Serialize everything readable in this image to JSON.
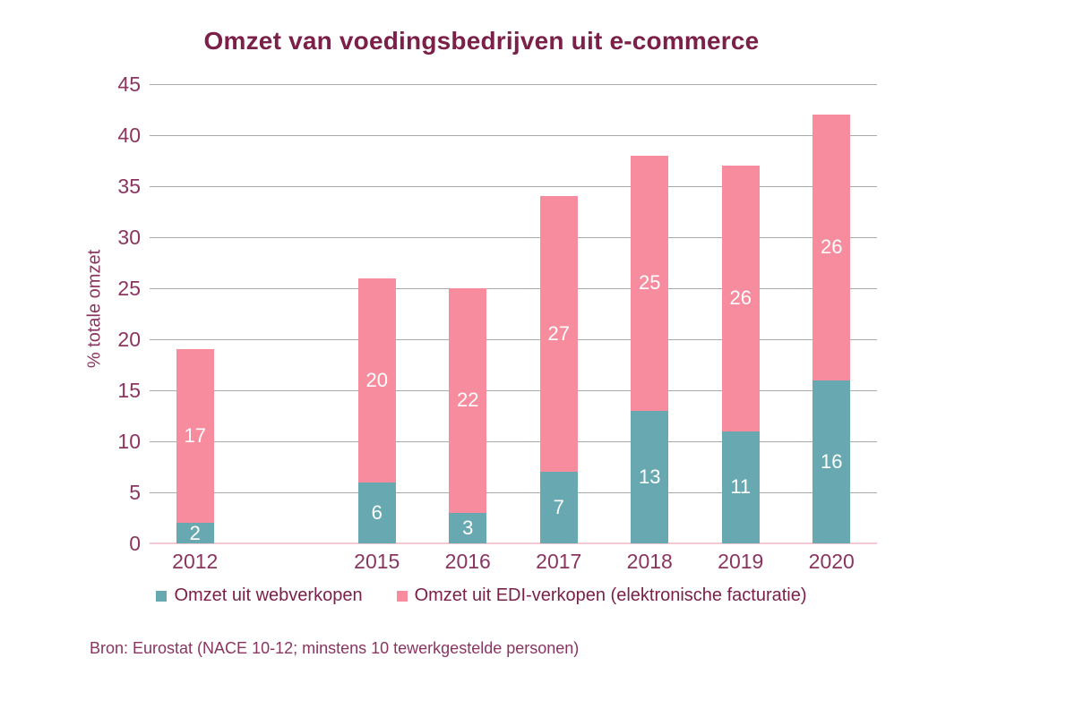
{
  "page": {
    "background": "#FFFFFF"
  },
  "chart_data": {
    "type": "bar",
    "stacked": true,
    "title": "Omzet van voedingsbedrijven uit e-commerce",
    "categories": [
      "2012",
      "2015",
      "2016",
      "2017",
      "2018",
      "2019",
      "2020"
    ],
    "series": [
      {
        "name": "Omzet uit webverkopen",
        "color": "#68A9B1",
        "values": [
          2,
          6,
          3,
          7,
          13,
          11,
          16
        ]
      },
      {
        "name": "Omzet uit EDI-verkopen (elektronische facturatie)",
        "color": "#F78C9E",
        "values": [
          17,
          20,
          22,
          27,
          25,
          26,
          26
        ]
      }
    ],
    "xlabel": "",
    "ylabel": "% totale omzet",
    "ylim": [
      0,
      45
    ],
    "yticks": [
      0,
      5,
      10,
      15,
      20,
      25,
      30,
      35,
      40,
      45
    ],
    "grid": true,
    "legend_position": "bottom",
    "x_slots": [
      0,
      2,
      3,
      4,
      5,
      6,
      7
    ],
    "n_slots": 8,
    "colors": {
      "title_text": "#7B2049",
      "axis_text": "#8A3560",
      "legend_text": "#7B2049",
      "gridline": "#A9A9A9",
      "baseline": "#F5C9D4",
      "value_label_text": "#FFFFFF"
    }
  },
  "source_note": "Bron: Eurostat (NACE 10-12; minstens 10 tewerkgestelde personen)"
}
